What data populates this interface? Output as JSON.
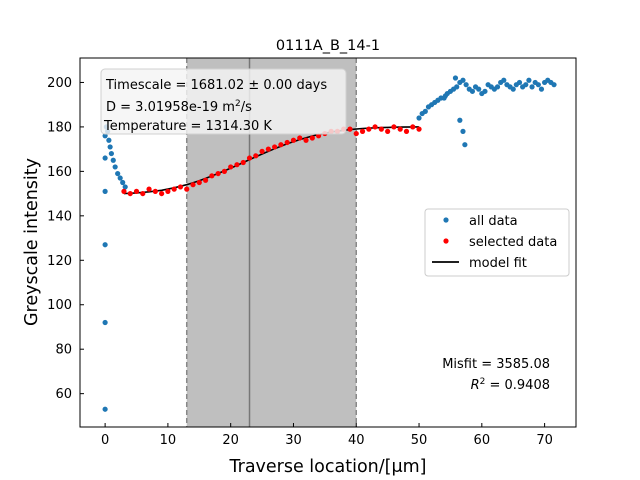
{
  "chart_data": {
    "type": "scatter",
    "title": "0111A_B_14-1",
    "xlabel": "Traverse location/[μm]",
    "ylabel": "Greyscale intensity",
    "xlim": [
      -4,
      75
    ],
    "ylim": [
      45,
      211
    ],
    "xticks": [
      "0",
      "10",
      "20",
      "30",
      "40",
      "50",
      "60",
      "70"
    ],
    "yticks": [
      "60",
      "80",
      "100",
      "120",
      "140",
      "160",
      "180",
      "200"
    ],
    "grid": false,
    "legend": {
      "placement": "center-right",
      "entries": [
        {
          "label": "all data",
          "color": "#1f77b4",
          "kind": "dot"
        },
        {
          "label": "selected data",
          "color": "#ff0000",
          "kind": "dot"
        },
        {
          "label": "model fit",
          "color": "#000000",
          "kind": "line"
        }
      ]
    },
    "info_box": {
      "timescale": "Timescale = 1681.02 ± 0.00 days",
      "diffusivity_prefix": "D = 3.01958e-19 m",
      "diffusivity_sup": "2",
      "diffusivity_suffix": "/s",
      "temperature": "Temperature = 1314.30 K"
    },
    "stats": {
      "misfit": "Misfit = 3585.08",
      "r2_symbol": "R",
      "r2_sup": "2",
      "r2_value": " = 0.9408"
    },
    "shaded_region": {
      "x_start": 13,
      "x_end": 40,
      "color": "#bfbfbf"
    },
    "center_line_x": 23,
    "series": [
      {
        "name": "all data",
        "color": "#1f77b4",
        "x": [
          0,
          0,
          0,
          0,
          0,
          0,
          0.2,
          0.4,
          0.6,
          0.8,
          1.0,
          1.3,
          1.6,
          2.0,
          2.4,
          2.8,
          3.2,
          50.0,
          50.5,
          51.0,
          51.5,
          52.0,
          52.5,
          53.0,
          53.5,
          54.0,
          54.5,
          55.0,
          55.5,
          56.0,
          56.5,
          57.0,
          57.5,
          58.0,
          58.5,
          59.0,
          59.5,
          60.0,
          60.5,
          61.0,
          61.5,
          62.0,
          62.5,
          63.0,
          63.5,
          64.0,
          64.5,
          65.0,
          65.5,
          66.0,
          66.5,
          67.0,
          67.5,
          68.0,
          68.5,
          69.0,
          69.5,
          70.0,
          70.5,
          71.0,
          71.5,
          56.5,
          57.0,
          57.3,
          54.2,
          55.8
        ],
        "y": [
          53,
          92,
          127,
          151,
          166,
          176,
          180,
          178,
          174,
          171,
          168,
          165,
          162,
          159,
          157,
          155,
          153,
          184,
          186,
          187,
          189,
          190,
          191,
          192,
          193,
          193,
          195,
          196,
          197,
          198,
          200,
          201,
          199,
          197,
          196,
          198,
          197,
          195,
          196,
          199,
          198,
          197,
          198,
          200,
          201,
          199,
          198,
          197,
          199,
          200,
          198,
          199,
          201,
          198,
          200,
          199,
          197,
          200,
          201,
          200,
          199,
          183,
          178,
          172,
          194,
          202
        ]
      },
      {
        "name": "selected data",
        "color": "#ff0000",
        "x": [
          3,
          4,
          5,
          6,
          7,
          8,
          9,
          10,
          11,
          12,
          13,
          14,
          15,
          16,
          17,
          18,
          19,
          20,
          21,
          22,
          23,
          24,
          25,
          26,
          27,
          28,
          29,
          30,
          31,
          32,
          33,
          34,
          35,
          36,
          37,
          38,
          39,
          40,
          41,
          42,
          43,
          44,
          45,
          46,
          47,
          48,
          49,
          50
        ],
        "y": [
          151,
          150,
          151,
          150,
          152,
          151,
          150,
          151,
          152,
          153,
          152,
          154,
          155,
          156,
          158,
          159,
          160,
          162,
          163,
          164,
          166,
          167,
          169,
          170,
          171,
          172,
          173,
          174,
          175,
          174,
          175,
          176,
          177,
          178,
          178,
          179,
          179,
          177,
          178,
          179,
          180,
          179,
          178,
          180,
          179,
          178,
          180,
          179
        ]
      },
      {
        "name": "model fit",
        "color": "#000000",
        "x": [
          3,
          5,
          7,
          9,
          11,
          13,
          15,
          17,
          19,
          21,
          23,
          25,
          27,
          29,
          31,
          33,
          35,
          37,
          39,
          41,
          43,
          45,
          47,
          50
        ],
        "y": [
          150.0,
          150.3,
          150.8,
          151.5,
          152.6,
          154.0,
          155.8,
          157.9,
          160.2,
          162.7,
          165.3,
          167.8,
          170.2,
          172.4,
          174.3,
          175.9,
          177.2,
          178.1,
          178.8,
          179.3,
          179.6,
          179.8,
          179.9,
          180.0
        ]
      }
    ]
  }
}
